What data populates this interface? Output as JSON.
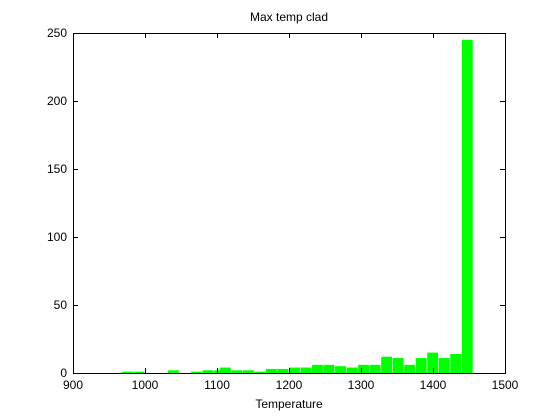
{
  "chart_data": {
    "type": "bar",
    "title": "Max temp clad",
    "xlabel": "Temperature",
    "ylabel": "",
    "xlim": [
      900,
      1500
    ],
    "ylim": [
      0,
      250
    ],
    "xticks": [
      900,
      1000,
      1100,
      1200,
      1300,
      1400,
      1500
    ],
    "yticks": [
      0,
      50,
      100,
      150,
      200,
      250
    ],
    "bin_width": 16,
    "bins": [
      {
        "x": 968,
        "value": 1
      },
      {
        "x": 984,
        "value": 1
      },
      {
        "x": 1032,
        "value": 2
      },
      {
        "x": 1064,
        "value": 1
      },
      {
        "x": 1080,
        "value": 2
      },
      {
        "x": 1096,
        "value": 2
      },
      {
        "x": 1104,
        "value": 4
      },
      {
        "x": 1120,
        "value": 2
      },
      {
        "x": 1136,
        "value": 2
      },
      {
        "x": 1152,
        "value": 1
      },
      {
        "x": 1168,
        "value": 3
      },
      {
        "x": 1184,
        "value": 3
      },
      {
        "x": 1200,
        "value": 4
      },
      {
        "x": 1216,
        "value": 4
      },
      {
        "x": 1232,
        "value": 6
      },
      {
        "x": 1248,
        "value": 6
      },
      {
        "x": 1264,
        "value": 5
      },
      {
        "x": 1280,
        "value": 4
      },
      {
        "x": 1296,
        "value": 6
      },
      {
        "x": 1312,
        "value": 6
      },
      {
        "x": 1328,
        "value": 12
      },
      {
        "x": 1344,
        "value": 11
      },
      {
        "x": 1360,
        "value": 6
      },
      {
        "x": 1376,
        "value": 11
      },
      {
        "x": 1392,
        "value": 15
      },
      {
        "x": 1408,
        "value": 11
      },
      {
        "x": 1424,
        "value": 14
      },
      {
        "x": 1440,
        "value": 245
      }
    ],
    "bar_color": "#00ff00",
    "grid": false,
    "legend": "none"
  }
}
